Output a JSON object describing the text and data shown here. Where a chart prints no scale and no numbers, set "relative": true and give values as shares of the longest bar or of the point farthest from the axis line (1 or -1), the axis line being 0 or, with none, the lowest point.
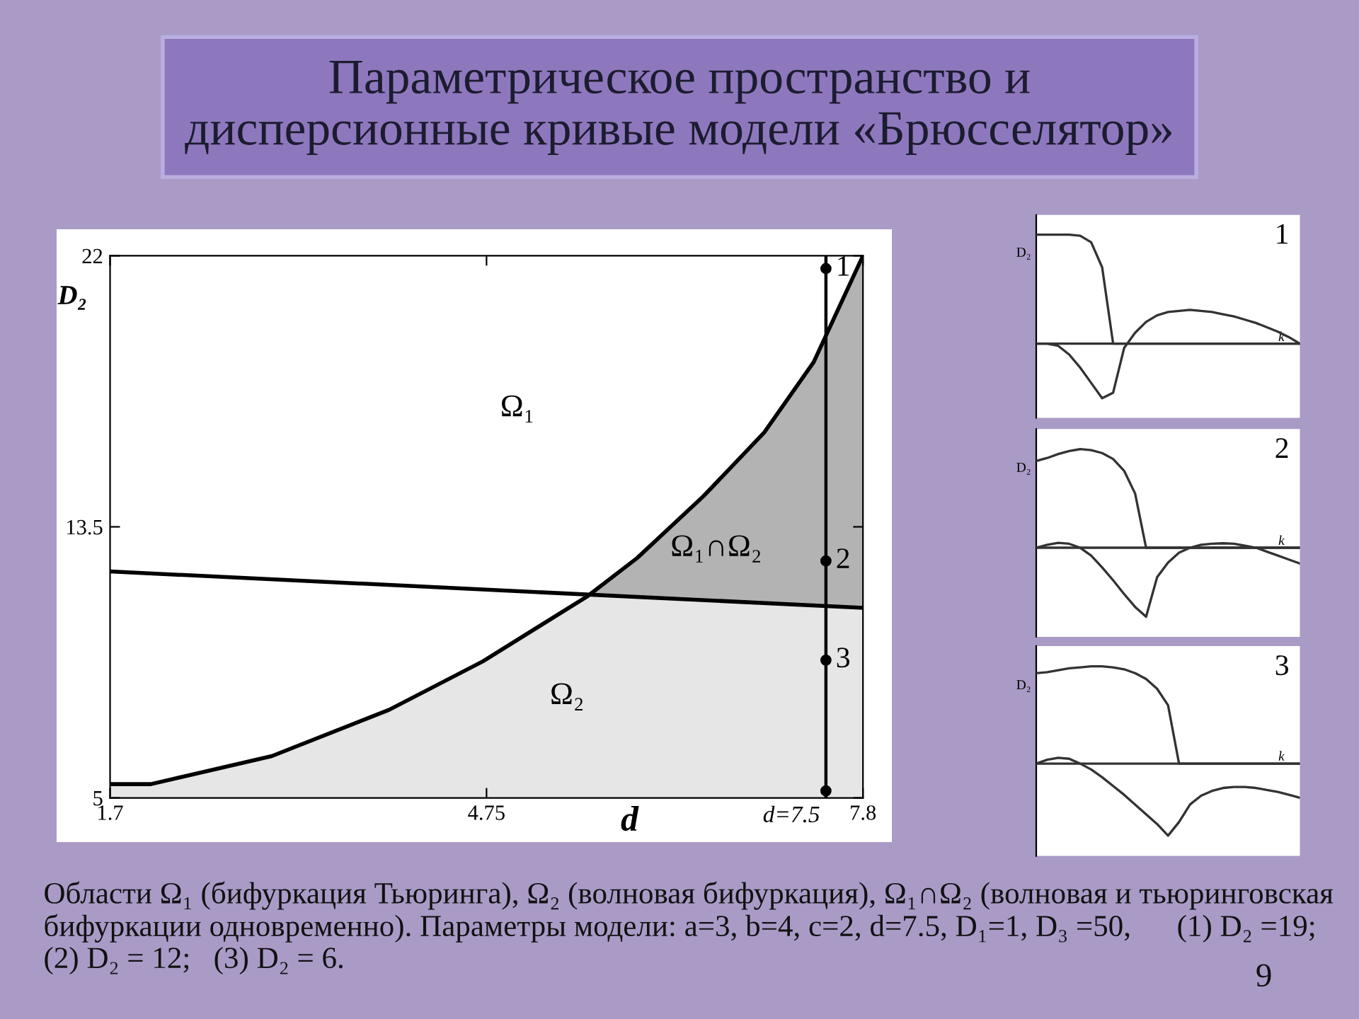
{
  "chart_data": [
    {
      "type": "line",
      "title": "Параметрическое пространство и\nдисперсионные кривые модели «Брюсселятор»",
      "xlabel": "d",
      "ylabel": "D₂",
      "xlim": [
        1.7,
        7.8
      ],
      "ylim": [
        5,
        22
      ],
      "xticks": [
        1.7,
        4.75,
        7.8
      ],
      "yticks": [
        5,
        13.5,
        22
      ],
      "grid": false,
      "series": [
        {
          "type": "area",
          "color": "#b3b3b3",
          "x": [
            5.58,
            5.97,
            6.51,
            7.0,
            7.4,
            7.8
          ],
          "values": [
            11.37,
            12.52,
            14.47,
            16.46,
            18.66,
            22
          ]
        },
        {
          "type": "area",
          "color": "#e6e6e6",
          "x": [
            1.7,
            2.03,
            3.01,
            3.96,
            4.72,
            5.57,
            5.58,
            7.8
          ],
          "values": [
            5.43,
            5.43,
            6.31,
            7.76,
            9.28,
            11.33,
            11.37,
            10.96
          ]
        },
        {
          "type": "line",
          "color": "#000000",
          "x": [
            1.7,
            2.03,
            3.01,
            3.96,
            4.72,
            5.57,
            5.97,
            6.51,
            7.0,
            7.4,
            7.8
          ],
          "values": [
            5.43,
            5.43,
            6.31,
            7.76,
            9.28,
            11.33,
            12.52,
            14.47,
            16.46,
            18.66,
            22
          ]
        },
        {
          "type": "line",
          "color": "#000000",
          "x": [
            1.7,
            7.8
          ],
          "values": [
            12.1,
            10.96
          ]
        },
        {
          "type": "scatter",
          "color": "#000000",
          "marker": "circle",
          "x": [
            7.5,
            7.5,
            7.5,
            7.5
          ],
          "values": [
            21.6,
            12.43,
            9.32,
            5.22
          ]
        }
      ],
      "ref_lines": [
        {
          "axis": "x",
          "value": 7.5,
          "label": "d=7.5",
          "color": "#000000"
        }
      ],
      "annotations": [
        "1",
        "2",
        "3",
        "Ω₁",
        "Ω₁∩Ω₂",
        "Ω₂",
        "Области Ω₁ (бифуркация Тьюринга), Ω₂ (волновая бифуркация), Ω₁∩Ω₂ (волновая и тьюринговская бифуркации одновременно). Параметры модели: a=3, b=4, c=2, d=7.5, D₁=1, D₃ =50,      (1) D₂ =19;   (2) D₂ = 12;   (3) D₂ = 6.",
        "9"
      ]
    },
    {
      "type": "line",
      "title": "1",
      "xlabel": "k",
      "ylabel": "D₂",
      "relative": true,
      "categories": [
        null,
        null,
        null,
        null,
        null,
        null,
        null,
        null,
        null,
        null,
        null,
        null,
        null,
        null,
        null,
        null,
        null,
        null,
        null,
        null,
        null,
        null,
        null,
        null,
        null
      ],
      "series": [
        {
          "color": "#333333",
          "values": [
            1,
            1,
            1,
            1,
            0.99,
            0.93,
            0.7,
            0,
            0,
            0,
            0,
            0,
            0,
            0,
            0,
            0,
            0,
            0,
            0,
            0,
            0,
            0,
            0,
            0,
            0
          ]
        },
        {
          "color": "#333333",
          "values": [
            0,
            0,
            -0.02,
            -0.1,
            -0.22,
            -0.36,
            -0.5,
            -0.45,
            -0.04,
            0.1,
            0.2,
            0.26,
            0.29,
            0.3,
            0.31,
            0.3,
            0.29,
            0.27,
            0.25,
            0.22,
            0.19,
            0.15,
            0.11,
            0.06,
            0
          ]
        }
      ]
    },
    {
      "type": "line",
      "title": "2",
      "xlabel": "k",
      "ylabel": "D₂",
      "relative": true,
      "categories": [
        null,
        null,
        null,
        null,
        null,
        null,
        null,
        null,
        null,
        null,
        null,
        null,
        null,
        null,
        null,
        null,
        null,
        null,
        null,
        null,
        null,
        null,
        null,
        null,
        null
      ],
      "series": [
        {
          "color": "#333333",
          "values": [
            0.88,
            0.91,
            0.95,
            0.98,
            1.0,
            0.99,
            0.96,
            0.9,
            0.78,
            0.55,
            0,
            0,
            0,
            0,
            0,
            0,
            0,
            0,
            0,
            0,
            0,
            0,
            0,
            0,
            0
          ]
        },
        {
          "color": "#333333",
          "values": [
            0,
            0.03,
            0.05,
            0.04,
            0,
            -0.08,
            -0.2,
            -0.33,
            -0.47,
            -0.6,
            -0.7,
            -0.3,
            -0.15,
            -0.05,
            0,
            0.03,
            0.04,
            0.045,
            0.04,
            0.02,
            0,
            -0.04,
            -0.08,
            -0.12,
            -0.16
          ]
        }
      ]
    },
    {
      "type": "line",
      "title": "3",
      "xlabel": "k",
      "ylabel": "D₂",
      "relative": true,
      "categories": [
        null,
        null,
        null,
        null,
        null,
        null,
        null,
        null,
        null,
        null,
        null,
        null,
        null,
        null,
        null,
        null,
        null,
        null,
        null,
        null,
        null,
        null,
        null,
        null,
        null
      ],
      "series": [
        {
          "color": "#333333",
          "values": [
            0.93,
            0.94,
            0.96,
            0.98,
            0.99,
            1.0,
            1.0,
            0.99,
            0.97,
            0.93,
            0.87,
            0.77,
            0.6,
            0,
            0,
            0,
            0,
            0,
            0,
            0,
            0,
            0,
            0,
            0,
            0
          ]
        },
        {
          "color": "#333333",
          "values": [
            0,
            0.04,
            0.06,
            0.05,
            0,
            -0.06,
            -0.14,
            -0.23,
            -0.32,
            -0.42,
            -0.52,
            -0.62,
            -0.74,
            -0.6,
            -0.42,
            -0.33,
            -0.28,
            -0.25,
            -0.24,
            -0.24,
            -0.25,
            -0.27,
            -0.29,
            -0.32,
            -0.35
          ]
        }
      ]
    }
  ]
}
